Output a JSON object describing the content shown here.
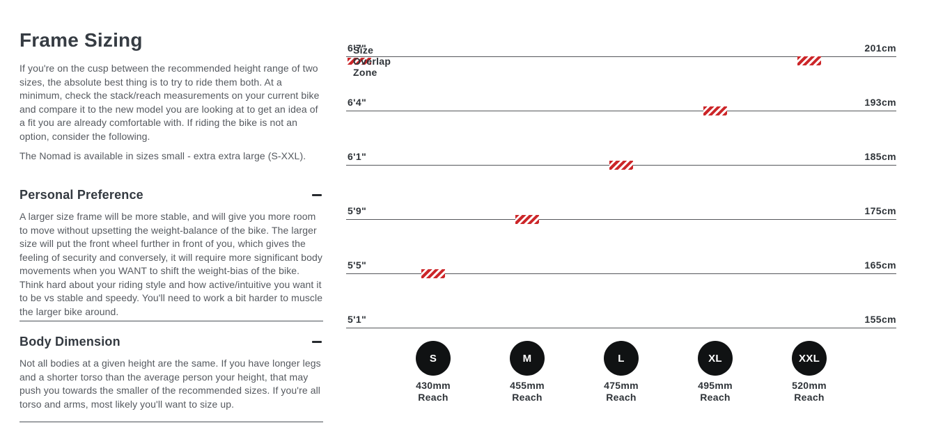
{
  "left_panel": {
    "title": "Frame Sizing",
    "intro": "If you're on the cusp between the recommended height range of two sizes, the absolute best thing is to try to ride them both. At a minimum, check the stack/reach measurements on your current bike and compare it to the new model you are looking at to get an idea of a fit you are already comfortable with. If riding the bike is not an option, consider the following.",
    "availability": "The Nomad is available in sizes small - extra extra large (S-XXL).",
    "sections": [
      {
        "heading": "Personal Preference",
        "collapse_icon": "minus",
        "body": "A larger size frame will be more stable, and will give you more room to move without upsetting the weight-balance of the bike. The larger size will put the front wheel further in front of you, which gives the feeling of security and conversely, it will require more significant body movements when you WANT to shift the weight-bias of the bike. Think hard about your riding style and how active/intuitive you want it to be vs stable and speedy. You'll need to work a bit harder to muscle the larger bike around."
      },
      {
        "heading": "Body Dimension",
        "collapse_icon": "minus",
        "body": "Not all bodies at a given height are the same. If you have longer legs and a shorter torso than the average person your height, that may push you towards the smaller of the recommended sizes. If you're all torso and arms, most likely you'll want to size up."
      }
    ]
  },
  "chart_data": {
    "type": "bar",
    "subtype": "vertical-range-bars",
    "title": "",
    "legend": {
      "label": "Size Overlap Zone",
      "position": "top-left",
      "swatch": "red-diagonal-hatch"
    },
    "grid": "horizontal-lines",
    "height_lines": [
      {
        "imperial": "6'7\"",
        "metric": "201cm"
      },
      {
        "imperial": "6'4\"",
        "metric": "193cm"
      },
      {
        "imperial": "6'1\"",
        "metric": "185cm"
      },
      {
        "imperial": "5'9\"",
        "metric": "175cm"
      },
      {
        "imperial": "5'5\"",
        "metric": "165cm"
      },
      {
        "imperial": "5'1\"",
        "metric": "155cm"
      }
    ],
    "sizes": [
      {
        "label": "S",
        "reach_value": "430mm",
        "reach_caption": "Reach",
        "top_line": 4,
        "bottom_line": 5,
        "overlap_top": true,
        "overlap_bottom": false
      },
      {
        "label": "M",
        "reach_value": "455mm",
        "reach_caption": "Reach",
        "top_line": 3,
        "bottom_line": 4,
        "overlap_top": true,
        "overlap_bottom": true
      },
      {
        "label": "L",
        "reach_value": "475mm",
        "reach_caption": "Reach",
        "top_line": 2,
        "bottom_line": 3,
        "overlap_top": true,
        "overlap_bottom": true
      },
      {
        "label": "XL",
        "reach_value": "495mm",
        "reach_caption": "Reach",
        "top_line": 1,
        "bottom_line": 2,
        "overlap_top": true,
        "overlap_bottom": true
      },
      {
        "label": "XXL",
        "reach_value": "520mm",
        "reach_caption": "Reach",
        "top_line": 0,
        "bottom_line": 1,
        "overlap_top": false,
        "overlap_bottom": true
      }
    ],
    "colors": {
      "bar_red": "#cc2629",
      "hatch_white": "#ffffff",
      "line_gray": "#54565a",
      "label_dark": "#2e3338",
      "circle_black": "#101213"
    }
  }
}
